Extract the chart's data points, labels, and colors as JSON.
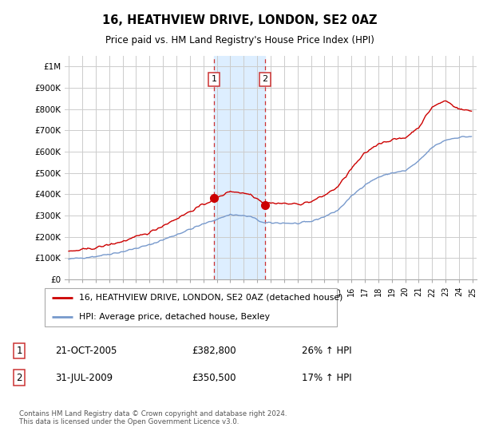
{
  "title": "16, HEATHVIEW DRIVE, LONDON, SE2 0AZ",
  "subtitle": "Price paid vs. HM Land Registry's House Price Index (HPI)",
  "footer": "Contains HM Land Registry data © Crown copyright and database right 2024.\nThis data is licensed under the Open Government Licence v3.0.",
  "legend_line1": "16, HEATHVIEW DRIVE, LONDON, SE2 0AZ (detached house)",
  "legend_line2": "HPI: Average price, detached house, Bexley",
  "transaction1_date": "21-OCT-2005",
  "transaction1_price": "£382,800",
  "transaction1_hpi": "26% ↑ HPI",
  "transaction2_date": "31-JUL-2009",
  "transaction2_price": "£350,500",
  "transaction2_hpi": "17% ↑ HPI",
  "vline1_x": 2005.8,
  "vline2_x": 2009.58,
  "marker1_y": 382800,
  "marker2_y": 350500,
  "shade_x1": 2005.8,
  "shade_x2": 2009.58,
  "ylim": [
    0,
    1050000
  ],
  "xlim": [
    1994.7,
    2025.3
  ],
  "yticks": [
    0,
    100000,
    200000,
    300000,
    400000,
    500000,
    600000,
    700000,
    800000,
    900000,
    1000000
  ],
  "ytick_labels": [
    "£0",
    "£100K",
    "£200K",
    "£300K",
    "£400K",
    "£500K",
    "£600K",
    "£700K",
    "£800K",
    "£900K",
    "£1M"
  ],
  "red_line_color": "#cc0000",
  "blue_line_color": "#7799cc",
  "shade_color": "#ddeeff",
  "vline_color": "#cc3333",
  "grid_color": "#cccccc",
  "label_box_color": "#cc3333"
}
